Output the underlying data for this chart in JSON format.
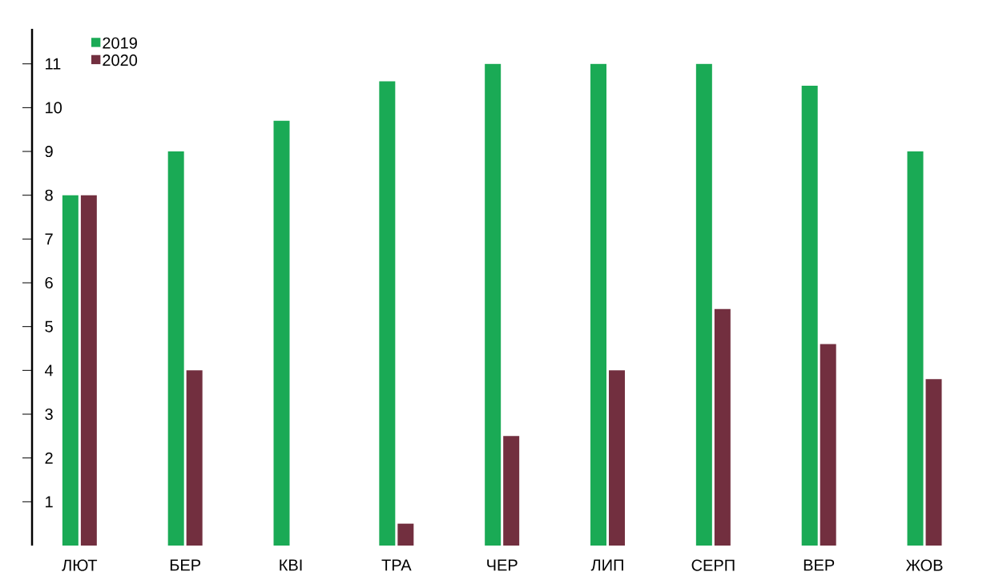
{
  "chart_data": {
    "type": "bar",
    "categories": [
      "ЛЮТ",
      "БЕР",
      "КВІ",
      "ТРА",
      "ЧЕР",
      "ЛИП",
      "СЕРП",
      "ВЕР",
      "ЖОВ"
    ],
    "series": [
      {
        "name": "2019",
        "color": "#1aaa55",
        "values": [
          8,
          9,
          9.7,
          10.6,
          11,
          11,
          11,
          10.5,
          9
        ]
      },
      {
        "name": "2020",
        "color": "#722f3f",
        "values": [
          8,
          4,
          null,
          0.5,
          2.5,
          4,
          5.4,
          4.6,
          3.8
        ]
      }
    ],
    "ylim": [
      0,
      11.8
    ],
    "yticks": [
      1,
      2,
      3,
      4,
      5,
      6,
      7,
      8,
      9,
      10,
      11
    ],
    "legend": "top left",
    "grid": false
  }
}
